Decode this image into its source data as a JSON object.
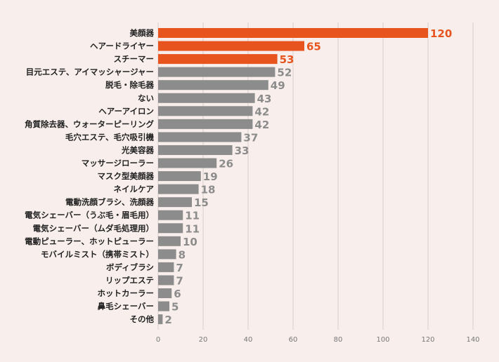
{
  "chart_data": {
    "type": "bar",
    "orientation": "horizontal",
    "categories": [
      "美顔器",
      "ヘアードライヤー",
      "スチーマー",
      "目元エステ、アイマッシャージャー",
      "脱毛・除毛器",
      "ない",
      "ヘアーアイロン",
      "角質除去器、ウォーターピーリング",
      "毛穴エステ、毛穴吸引機",
      "光美容器",
      "マッサージローラー",
      "マスク型美顔器",
      "ネイルケア",
      "電動洗顔ブラシ、洗顔器",
      "電気シェーバー（うぶ毛・眉毛用）",
      "電気シェーバー（ムダ毛処理用）",
      "電動ピューラー、ホットピューラー",
      "モバイルミスト（携帯ミスト）",
      "ボディブラシ",
      "リップエステ",
      "ホットカーラー",
      "鼻毛シェーバー",
      "その他"
    ],
    "values": [
      120,
      65,
      53,
      52,
      49,
      43,
      42,
      42,
      37,
      33,
      26,
      19,
      18,
      15,
      11,
      11,
      10,
      8,
      7,
      7,
      6,
      5,
      2
    ],
    "value_labels": [
      "120",
      "65",
      "53",
      "52",
      "49",
      "43",
      "42",
      "42",
      "37",
      "33",
      "26",
      "19",
      "18",
      "15",
      "11",
      "11",
      "10",
      "8",
      "7",
      "7",
      "6",
      "5",
      "2"
    ],
    "highlight_count": 3,
    "x_ticks": [
      0,
      20,
      40,
      60,
      80,
      100,
      120,
      140
    ],
    "x_tick_labels": [
      "0",
      "20",
      "40",
      "60",
      "80",
      "100",
      "120",
      "140"
    ],
    "xlim": [
      0,
      140
    ],
    "title": "",
    "xlabel": "",
    "ylabel": "",
    "grid": true,
    "colors": {
      "highlight": "#e8541e",
      "normal": "#8c8c8c",
      "highlight_label": "#e8541e",
      "normal_label": "#8c8c8c",
      "background": "#f8efec",
      "grid": "#d9cfcc"
    }
  }
}
